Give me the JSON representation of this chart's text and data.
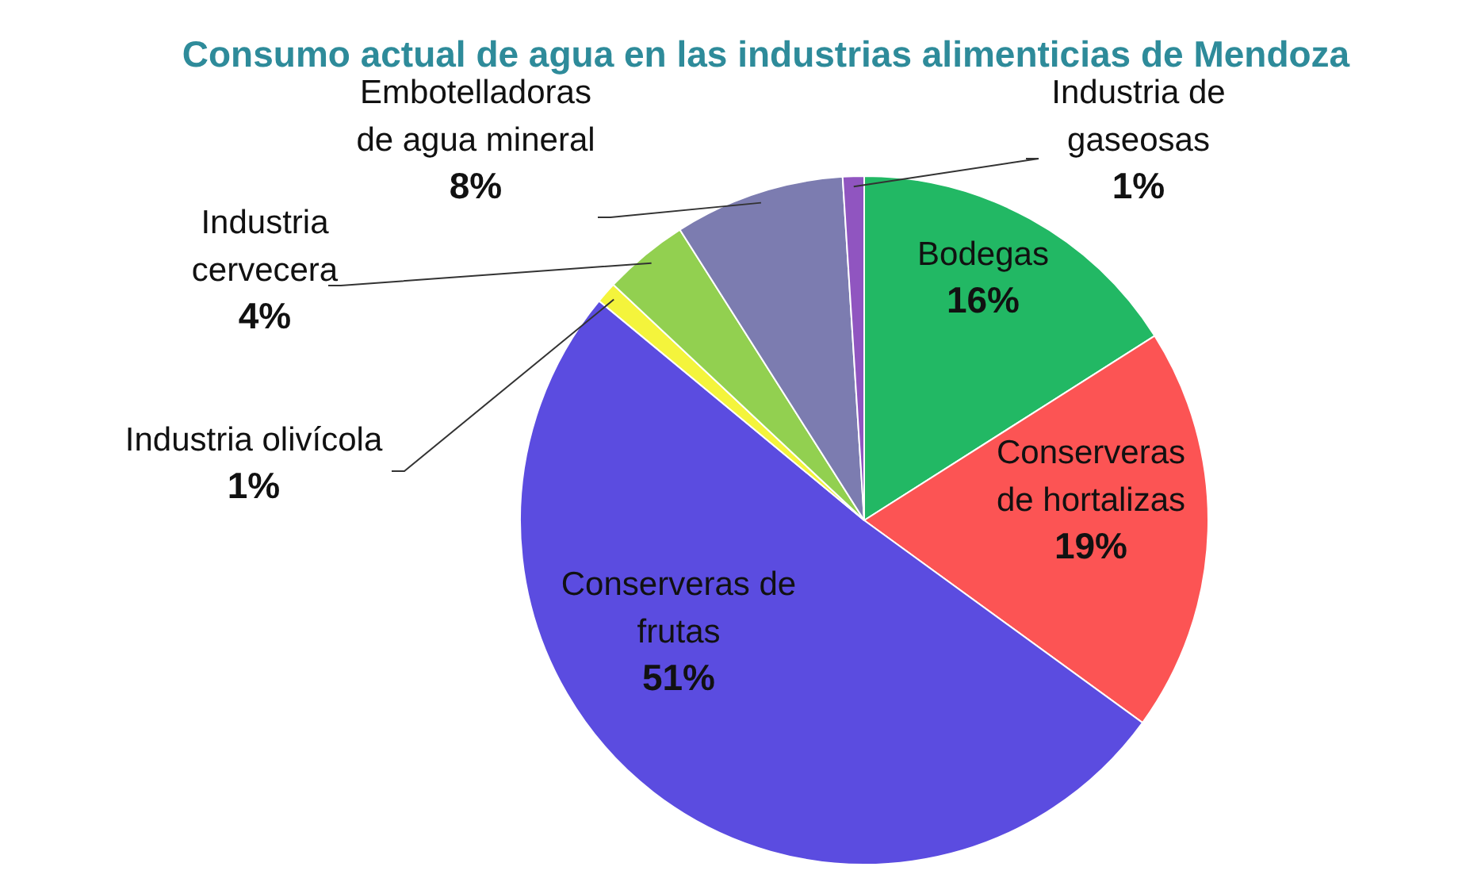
{
  "chart_data": {
    "type": "pie",
    "title": "Consumo actual de agua en las industrias alimenticias de Mendoza",
    "categories": [
      "Bodegas",
      "Conserveras de hortalizas",
      "Conserveras de frutas",
      "Industria olivícola",
      "Industria cervecera",
      "Embotelladoras de agua mineral",
      "Industria de gaseosas"
    ],
    "values": [
      16,
      19,
      51,
      1,
      4,
      8,
      1
    ],
    "value_labels": [
      "16%",
      "19%",
      "51%",
      "1%",
      "4%",
      "8%",
      "1%"
    ],
    "colors": [
      "#22b864",
      "#fc5454",
      "#5b4ce0",
      "#f4f43c",
      "#92d050",
      "#7c7cb0",
      "#9055c0"
    ]
  }
}
